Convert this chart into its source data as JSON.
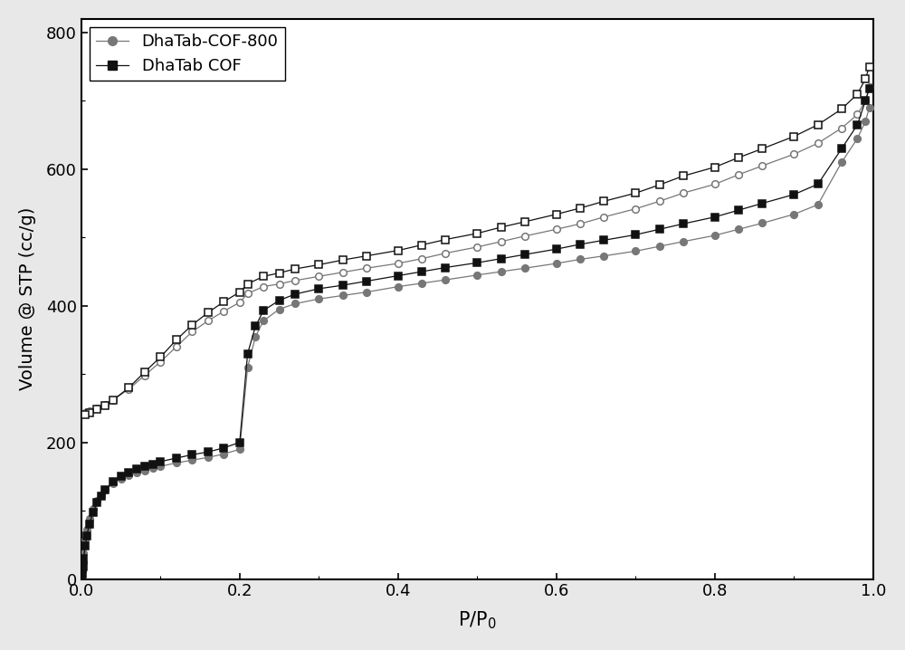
{
  "title": "",
  "xlabel": "P/P$_0$",
  "ylabel": "Volume @ STP (cc/g)",
  "xlim": [
    0.0,
    1.0
  ],
  "ylim": [
    0,
    820
  ],
  "yticks": [
    0,
    200,
    400,
    600,
    800
  ],
  "xticks": [
    0.0,
    0.2,
    0.4,
    0.6,
    0.8,
    1.0
  ],
  "background_color": "#e8e8e8",
  "legend_labels": [
    "DhaTab-COF-800",
    "DhaTab COF"
  ],
  "series": {
    "cof800_ads": {
      "x": [
        0.0005,
        0.001,
        0.002,
        0.003,
        0.005,
        0.007,
        0.01,
        0.015,
        0.02,
        0.025,
        0.03,
        0.04,
        0.05,
        0.06,
        0.07,
        0.08,
        0.09,
        0.1,
        0.12,
        0.14,
        0.16,
        0.18,
        0.2,
        0.21,
        0.22,
        0.23,
        0.25,
        0.27,
        0.3,
        0.33,
        0.36,
        0.4,
        0.43,
        0.46,
        0.5,
        0.53,
        0.56,
        0.6,
        0.63,
        0.66,
        0.7,
        0.73,
        0.76,
        0.8,
        0.83,
        0.86,
        0.9,
        0.93,
        0.96,
        0.98,
        0.99,
        0.995
      ],
      "y": [
        5,
        12,
        25,
        38,
        58,
        72,
        88,
        103,
        115,
        123,
        130,
        140,
        147,
        152,
        156,
        159,
        162,
        165,
        170,
        174,
        178,
        183,
        190,
        310,
        355,
        378,
        395,
        403,
        410,
        415,
        420,
        428,
        433,
        438,
        445,
        450,
        455,
        462,
        468,
        473,
        480,
        487,
        494,
        503,
        512,
        521,
        534,
        548,
        610,
        645,
        670,
        690
      ],
      "color": "#777777",
      "marker": "o",
      "filled": true,
      "label": "DhaTab-COF-800"
    },
    "cof800_des": {
      "x": [
        0.995,
        0.99,
        0.98,
        0.96,
        0.93,
        0.9,
        0.86,
        0.83,
        0.8,
        0.76,
        0.73,
        0.7,
        0.66,
        0.63,
        0.6,
        0.56,
        0.53,
        0.5,
        0.46,
        0.43,
        0.4,
        0.36,
        0.33,
        0.3,
        0.27,
        0.25,
        0.23,
        0.21,
        0.2,
        0.18,
        0.16,
        0.14,
        0.12,
        0.1,
        0.08,
        0.06,
        0.04,
        0.03,
        0.02,
        0.01,
        0.005
      ],
      "y": [
        720,
        700,
        680,
        660,
        638,
        622,
        605,
        592,
        578,
        565,
        553,
        542,
        530,
        520,
        512,
        502,
        494,
        486,
        477,
        469,
        462,
        455,
        449,
        443,
        437,
        432,
        428,
        418,
        405,
        392,
        378,
        362,
        340,
        318,
        298,
        278,
        262,
        255,
        250,
        246,
        243
      ],
      "color": "#777777",
      "marker": "o",
      "filled": false,
      "label": "DhaTab-COF-800 des"
    },
    "cof_ads": {
      "x": [
        0.0005,
        0.001,
        0.002,
        0.003,
        0.005,
        0.007,
        0.01,
        0.015,
        0.02,
        0.025,
        0.03,
        0.04,
        0.05,
        0.06,
        0.07,
        0.08,
        0.09,
        0.1,
        0.12,
        0.14,
        0.16,
        0.18,
        0.2,
        0.21,
        0.22,
        0.23,
        0.25,
        0.27,
        0.3,
        0.33,
        0.36,
        0.4,
        0.43,
        0.46,
        0.5,
        0.53,
        0.56,
        0.6,
        0.63,
        0.66,
        0.7,
        0.73,
        0.76,
        0.8,
        0.83,
        0.86,
        0.9,
        0.93,
        0.96,
        0.98,
        0.99,
        0.995
      ],
      "y": [
        3,
        8,
        18,
        30,
        48,
        63,
        80,
        97,
        112,
        122,
        130,
        142,
        150,
        156,
        161,
        165,
        168,
        172,
        177,
        182,
        186,
        192,
        200,
        330,
        370,
        393,
        408,
        417,
        425,
        430,
        436,
        444,
        450,
        456,
        463,
        469,
        475,
        483,
        490,
        496,
        504,
        512,
        520,
        530,
        540,
        550,
        563,
        578,
        630,
        665,
        700,
        718
      ],
      "color": "#111111",
      "marker": "s",
      "filled": true,
      "label": "DhaTab COF"
    },
    "cof_des": {
      "x": [
        0.995,
        0.99,
        0.98,
        0.96,
        0.93,
        0.9,
        0.86,
        0.83,
        0.8,
        0.76,
        0.73,
        0.7,
        0.66,
        0.63,
        0.6,
        0.56,
        0.53,
        0.5,
        0.46,
        0.43,
        0.4,
        0.36,
        0.33,
        0.3,
        0.27,
        0.25,
        0.23,
        0.21,
        0.2,
        0.18,
        0.16,
        0.14,
        0.12,
        0.1,
        0.08,
        0.06,
        0.04,
        0.03,
        0.02,
        0.01,
        0.005
      ],
      "y": [
        750,
        732,
        710,
        688,
        665,
        648,
        630,
        617,
        603,
        590,
        577,
        565,
        553,
        543,
        534,
        523,
        515,
        506,
        497,
        489,
        481,
        473,
        467,
        460,
        454,
        448,
        443,
        432,
        420,
        406,
        390,
        372,
        350,
        325,
        303,
        280,
        262,
        254,
        248,
        243,
        240
      ],
      "color": "#111111",
      "marker": "s",
      "filled": false,
      "label": "DhaTab COF des"
    }
  }
}
